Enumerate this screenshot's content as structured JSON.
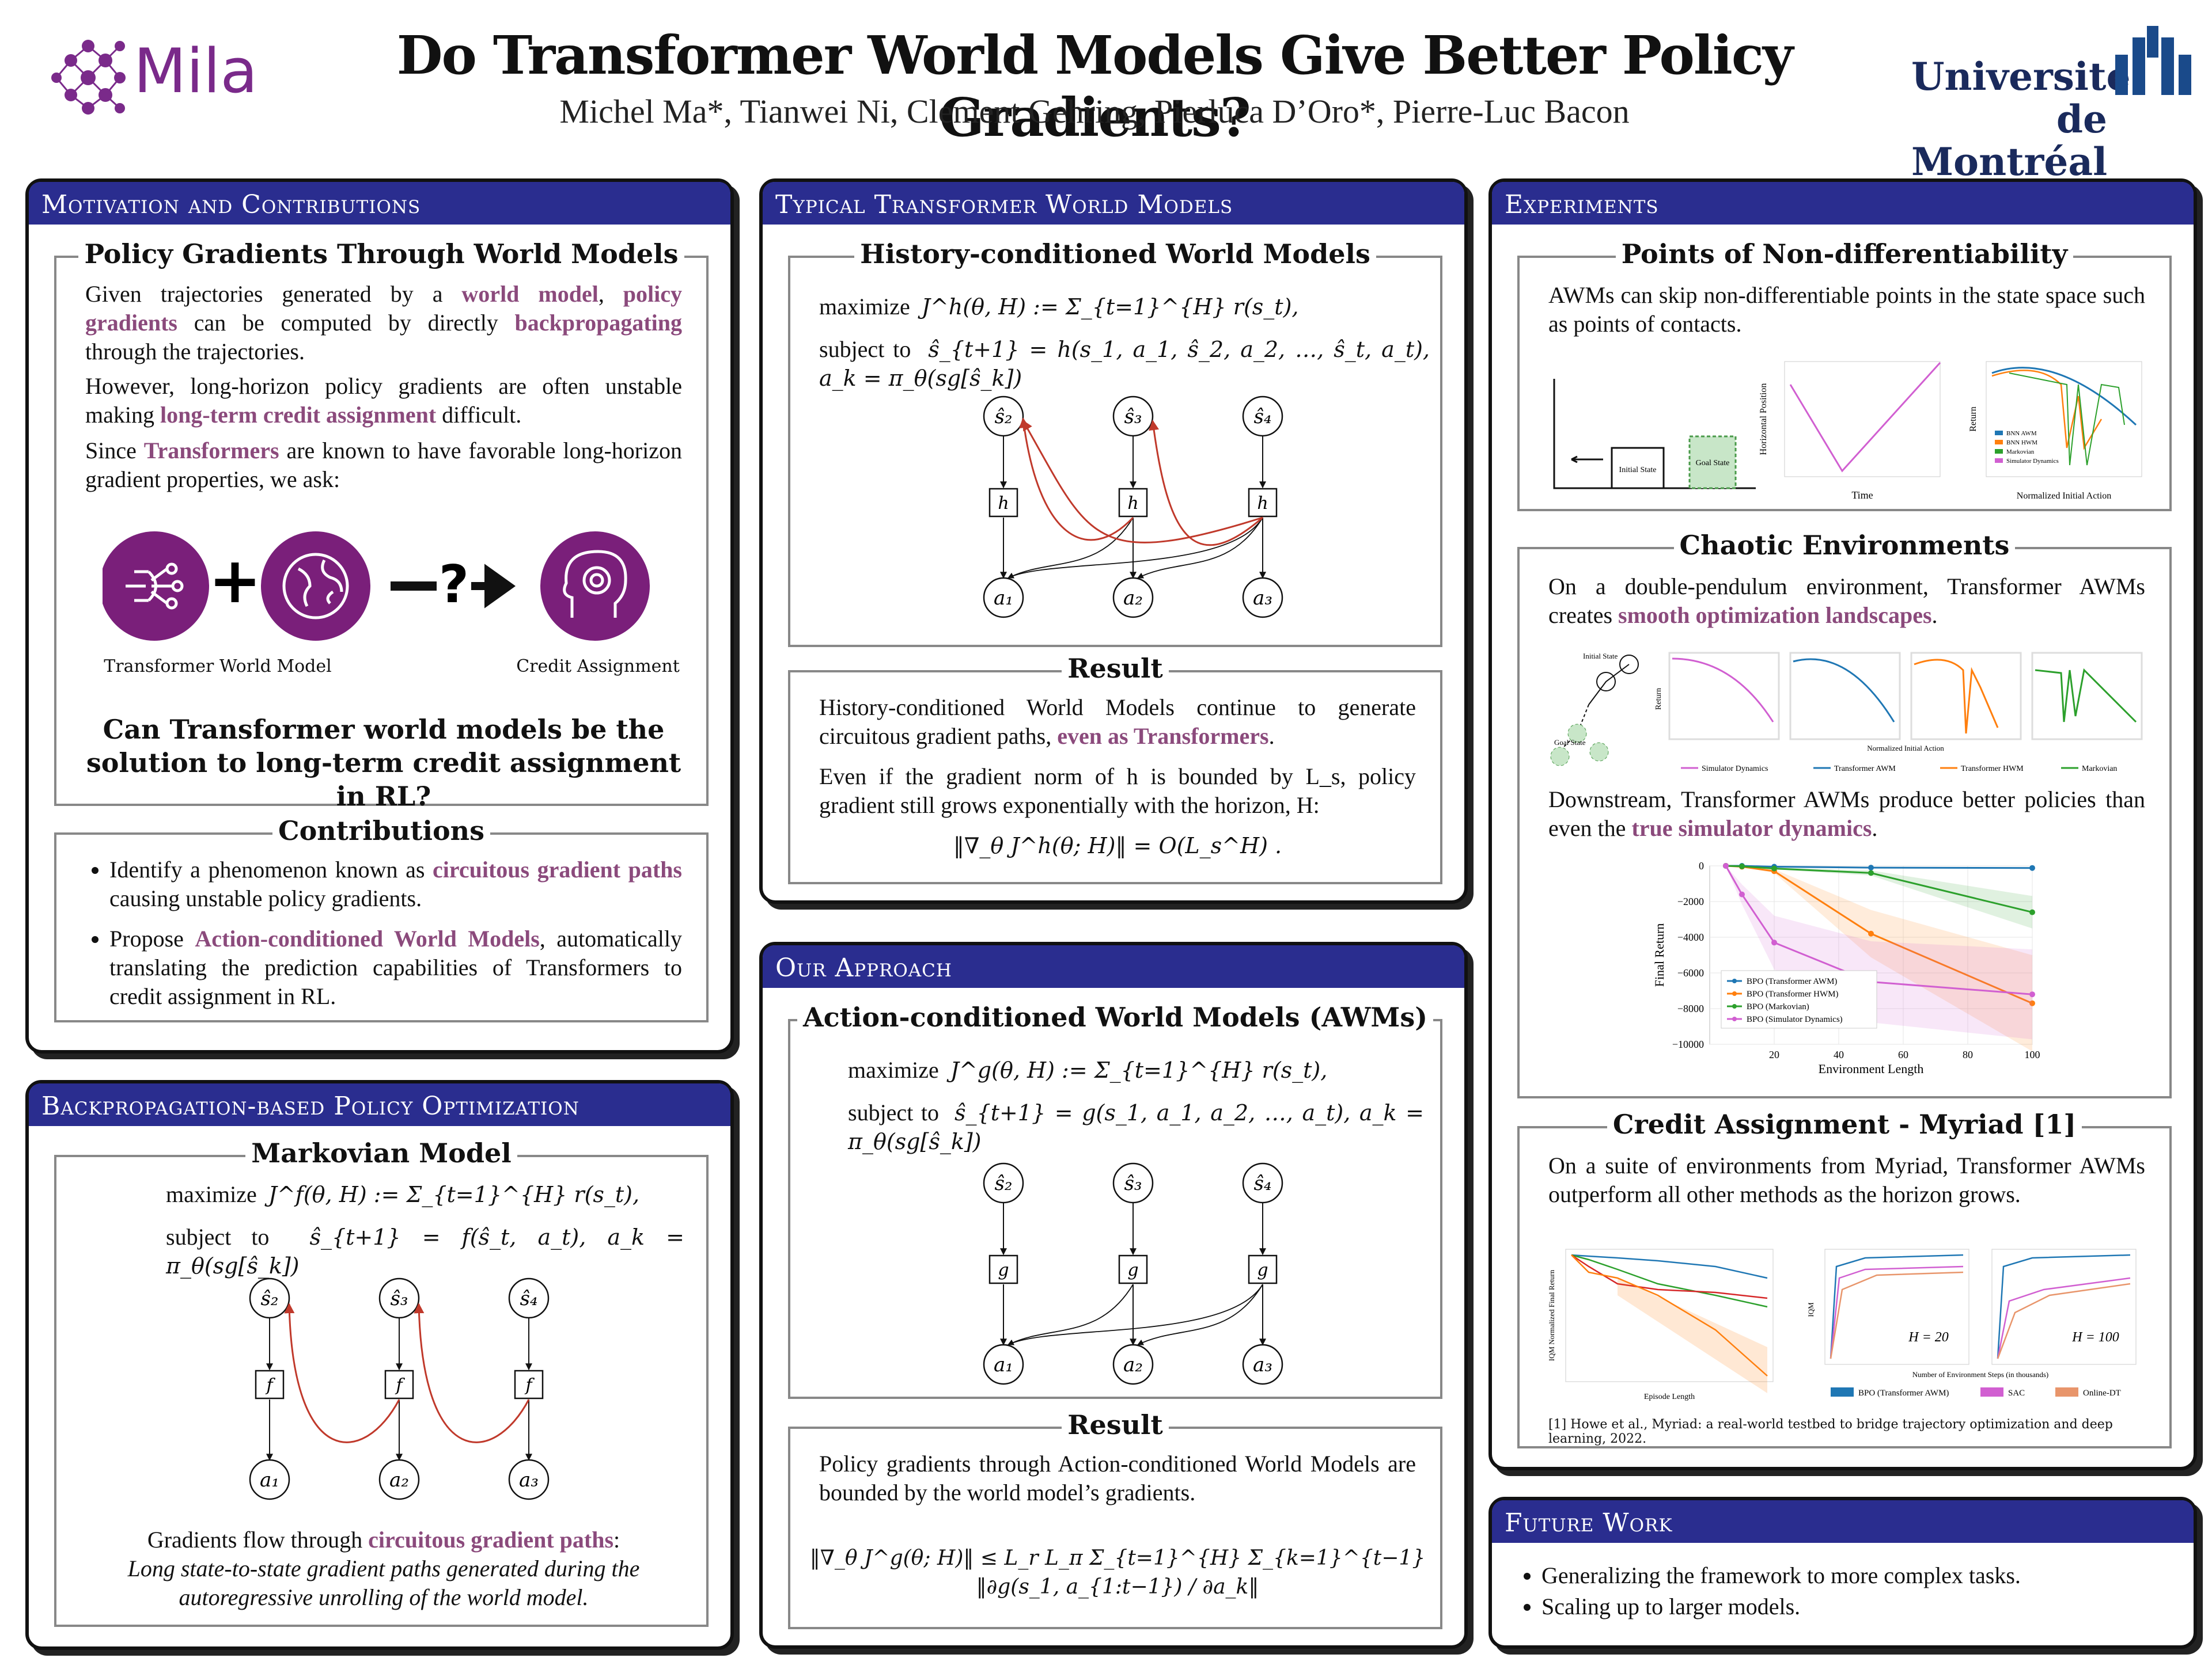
{
  "header": {
    "title": "Do Transformer World Models Give Better Policy Gradients?",
    "authors": "Michel Ma*, Tianwei Ni, Clement Gehring, Pierluca D’Oro*, Pierre-Luc Bacon",
    "mila_logo": "Mila",
    "udem_line1": "Université",
    "udem_line2": "de Montréal"
  },
  "motivation": {
    "heading": "Motivation and Contributions",
    "box1_title": "Policy Gradients Through World Models",
    "p1_a": "Given trajectories generated by a ",
    "p1_h1": "world model",
    "p1_b": ", ",
    "p1_h2": "policy gradients",
    "p1_c": " can be computed by directly ",
    "p1_h3": "backpropagating",
    "p1_d": " through the trajectories.",
    "p2_a": "However, long-horizon policy gradients are often unstable making ",
    "p2_h": "long-term credit assignment",
    "p2_b": " difficult.",
    "p3_a": "Since ",
    "p3_h": "Transformers",
    "p3_b": " are known to have favorable long-horizon gradient properties, we ask:",
    "icon1_label": "Transformer World Model",
    "icon2_label": "Credit Assignment",
    "question": "Can Transformer world models be the solution to long-term credit assignment in RL?",
    "box2_title": "Contributions",
    "c1_a": "Identify a phenomenon known as ",
    "c1_h": "circuitous gradient paths",
    "c1_b": " causing unstable policy gradients.",
    "c2_a": "Propose ",
    "c2_h": "Action-conditioned World Models",
    "c2_b": ", automatically translating the prediction capabilities of Transformers to credit assignment in RL."
  },
  "bpo": {
    "heading": "Backpropagation-based Policy Optimization",
    "box_title": "Markovian Model",
    "eq1_label": "maximize",
    "eq1": "J^f(θ, H) := Σ_{t=1}^{H} r(s_t),",
    "eq2_label": "subject to",
    "eq2": "ŝ_{t+1} = f(ŝ_t, a_t), a_k = π_θ(sg[ŝ_k])",
    "cap_a": "Gradients flow through ",
    "cap_h": "circuitous gradient paths",
    "cap_b": ":",
    "cap_italic": "Long state-to-state gradient paths generated during the autoregressive unrolling of the world model."
  },
  "typical": {
    "heading": "Typical Transformer World Models",
    "box_title": "History-conditioned World Models",
    "eq1_label": "maximize",
    "eq1": "J^h(θ, H) := Σ_{t=1}^{H} r(s_t),",
    "eq2_label": "subject to",
    "eq2": "ŝ_{t+1} = h(s_1, a_1, ŝ_2, a_2, …, ŝ_t, a_t), a_k = π_θ(sg[ŝ_k])",
    "result_title": "Result",
    "r1_a": "History-conditioned World Models continue to generate circuitous gradient paths, ",
    "r1_h": "even as Transformers",
    "r1_b": ".",
    "r2": "Even if the gradient norm of h is bounded by L_s, policy gradient still grows exponentially with the horizon, H:",
    "r_eq": "‖∇_θ J^h(θ; H)‖ = O(L_s^H)  ."
  },
  "approach": {
    "heading": "Our Approach",
    "box_title": "Action-conditioned World Models (AWMs)",
    "eq1_label": "maximize",
    "eq1": "J^g(θ, H) := Σ_{t=1}^{H} r(s_t),",
    "eq2_label": "subject to",
    "eq2": "ŝ_{t+1} = g(s_1, a_1, a_2, …, a_t), a_k = π_θ(sg[ŝ_k])",
    "result_title": "Result",
    "r1": "Policy gradients through Action-conditioned World Models are bounded by the world model’s gradients.",
    "r_eq": "‖∇_θ J^g(θ; H)‖ ≤ L_r L_π Σ_{t=1}^{H} Σ_{k=1}^{t−1} ‖∂g(s_1, a_{1:t−1}) / ∂a_k‖"
  },
  "experiments": {
    "heading": "Experiments",
    "b1_title": "Points of Non-differentiability",
    "b1_text": "AWMs can skip non-differentiable points in the state space such as points of contacts.",
    "b1_fig_initial": "Initial State",
    "b1_fig_goal": "Goal State",
    "b1_fig_xlabel": "Time",
    "b1_fig_ylabel": "Horizontal Position",
    "b1_fig2_xlabel": "Normalized Initial Action",
    "b1_fig2_ylabel": "Return",
    "b1_fig2_legend": [
      "BNN AWM",
      "BNN HWM",
      "Markovian",
      "Simulator Dynamics"
    ],
    "b2_title": "Chaotic Environments",
    "b2_text_a": "On a double-pendulum environment, Transformer AWMs creates ",
    "b2_text_h": "smooth optimization landscapes",
    "b2_text_b": ".",
    "b2_fig_legend": [
      "Simulator Dynamics",
      "Transformer AWM",
      "Transformer HWM",
      "Markovian"
    ],
    "b2_fig_initial": "Initial State",
    "b2_fig_goal": "Goal State",
    "b2_fig_ylabel": "Return",
    "b2_fig_xlabel": "Normalized Initial Action",
    "b2_text2_a": "Downstream, Transformer AWMs produce better policies than even the ",
    "b2_text2_h": "true simulator dynamics",
    "b2_text2_b": ".",
    "b3_title": "Credit Assignment - Myriad [1]",
    "b3_text": "On a suite of environments from Myriad, Transformer AWMs outperform all other methods as the horizon grows.",
    "b3_fig_ylabel": "IQM Normalized Final Return",
    "b3_fig_xlabel": "Episode Length",
    "b3_fig2_ylabel": "IQM",
    "b3_fig2_xlabel": "Number of Environment Steps (in thousands)",
    "b3_h20": "H = 20",
    "b3_h100": "H = 100",
    "b3_legend": [
      "BPO (Transformer AWM)",
      "SAC",
      "Online-DT"
    ],
    "reference": "[1] Howe et al., Myriad: a real-world testbed to bridge trajectory optimization and deep learning, 2022."
  },
  "future": {
    "heading": "Future Work",
    "items": [
      "Generalizing the framework to more complex tasks.",
      "Scaling up to larger models."
    ]
  },
  "colors": {
    "header_bar": "#2a2d8f",
    "highlight": "#8b4a7c",
    "mila_purple": "#7a2a8a",
    "gradient_red": "#c0392b",
    "series_blue": "#1f77b4",
    "series_orange": "#ff7f0e",
    "series_green": "#2ca02c",
    "series_pink": "#d15fd1"
  },
  "chart_data": {
    "type": "line",
    "x": [
      5,
      10,
      20,
      50,
      100
    ],
    "xlabel": "Environment Length",
    "ylabel": "Final Return",
    "xlim": [
      0,
      100
    ],
    "ylim": [
      -10000,
      0
    ],
    "y_ticks": [
      0,
      -2000,
      -4000,
      -6000,
      -8000,
      -10000
    ],
    "x_ticks": [
      20,
      40,
      60,
      80,
      100
    ],
    "legend_position": "bottom-left",
    "series": [
      {
        "name": "BPO (Transformer AWM)",
        "color": "#1f77b4",
        "values": [
          0,
          0,
          -50,
          -100,
          -120
        ]
      },
      {
        "name": "BPO (Transformer HWM)",
        "color": "#ff7f0e",
        "values": [
          0,
          -50,
          -300,
          -3800,
          -7700
        ]
      },
      {
        "name": "BPO (Markovian)",
        "color": "#2ca02c",
        "values": [
          0,
          -30,
          -150,
          -400,
          -2600
        ]
      },
      {
        "name": "BPO (Simulator Dynamics)",
        "color": "#d15fd1",
        "values": [
          0,
          -1600,
          -4300,
          -6500,
          -7200
        ]
      }
    ]
  }
}
